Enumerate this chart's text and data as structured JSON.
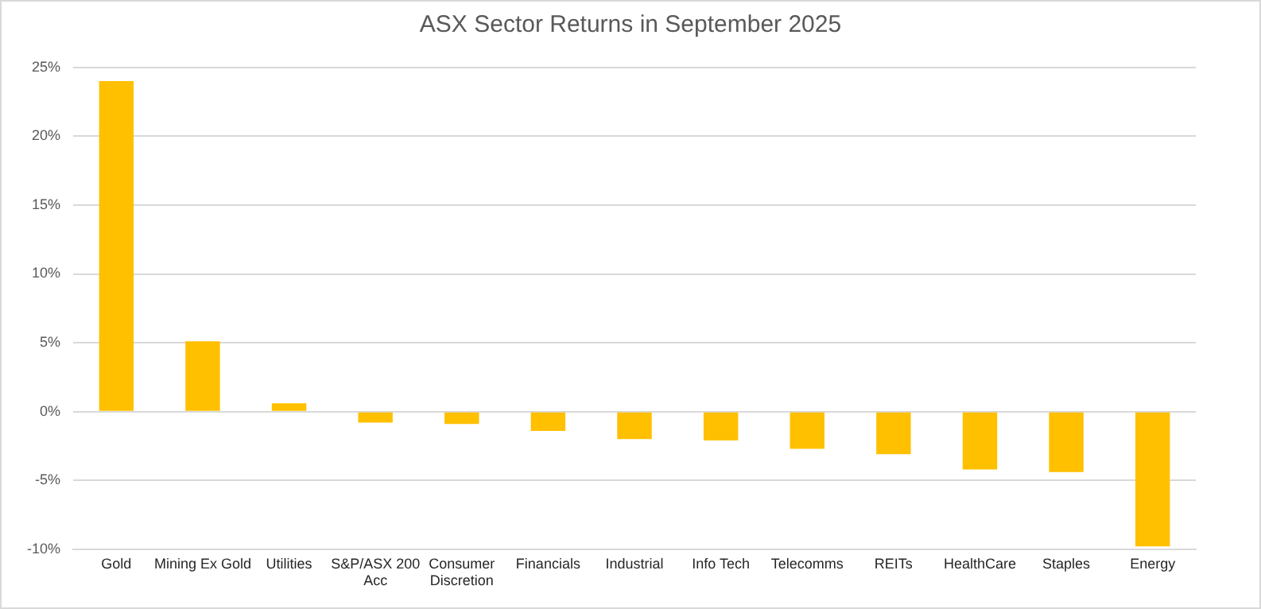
{
  "chart_data": {
    "type": "bar",
    "title": "ASX Sector Returns in September 2025",
    "categories": [
      "Gold",
      "Mining Ex Gold",
      "Utilities",
      "S&P/ASX 200 Acc",
      "Consumer Discretion",
      "Financials",
      "Industrial",
      "Info Tech",
      "Telecomms",
      "REITs",
      "HealthCare",
      "Staples",
      "Energy"
    ],
    "values": [
      24,
      5.1,
      0.6,
      -0.8,
      -0.9,
      -1.4,
      -2.0,
      -2.1,
      -2.7,
      -3.1,
      -4.2,
      -4.4,
      -9.8
    ],
    "color": "#ffc000",
    "ylim": [
      -10,
      25
    ],
    "yticks": [
      {
        "value": -10,
        "label": "-10%"
      },
      {
        "value": -5,
        "label": "-5%"
      },
      {
        "value": 0,
        "label": "0%"
      },
      {
        "value": 5,
        "label": "5%"
      },
      {
        "value": 10,
        "label": "10%"
      },
      {
        "value": 15,
        "label": "15%"
      },
      {
        "value": 20,
        "label": "20%"
      },
      {
        "value": 25,
        "label": "25%"
      }
    ],
    "grid": "y"
  }
}
